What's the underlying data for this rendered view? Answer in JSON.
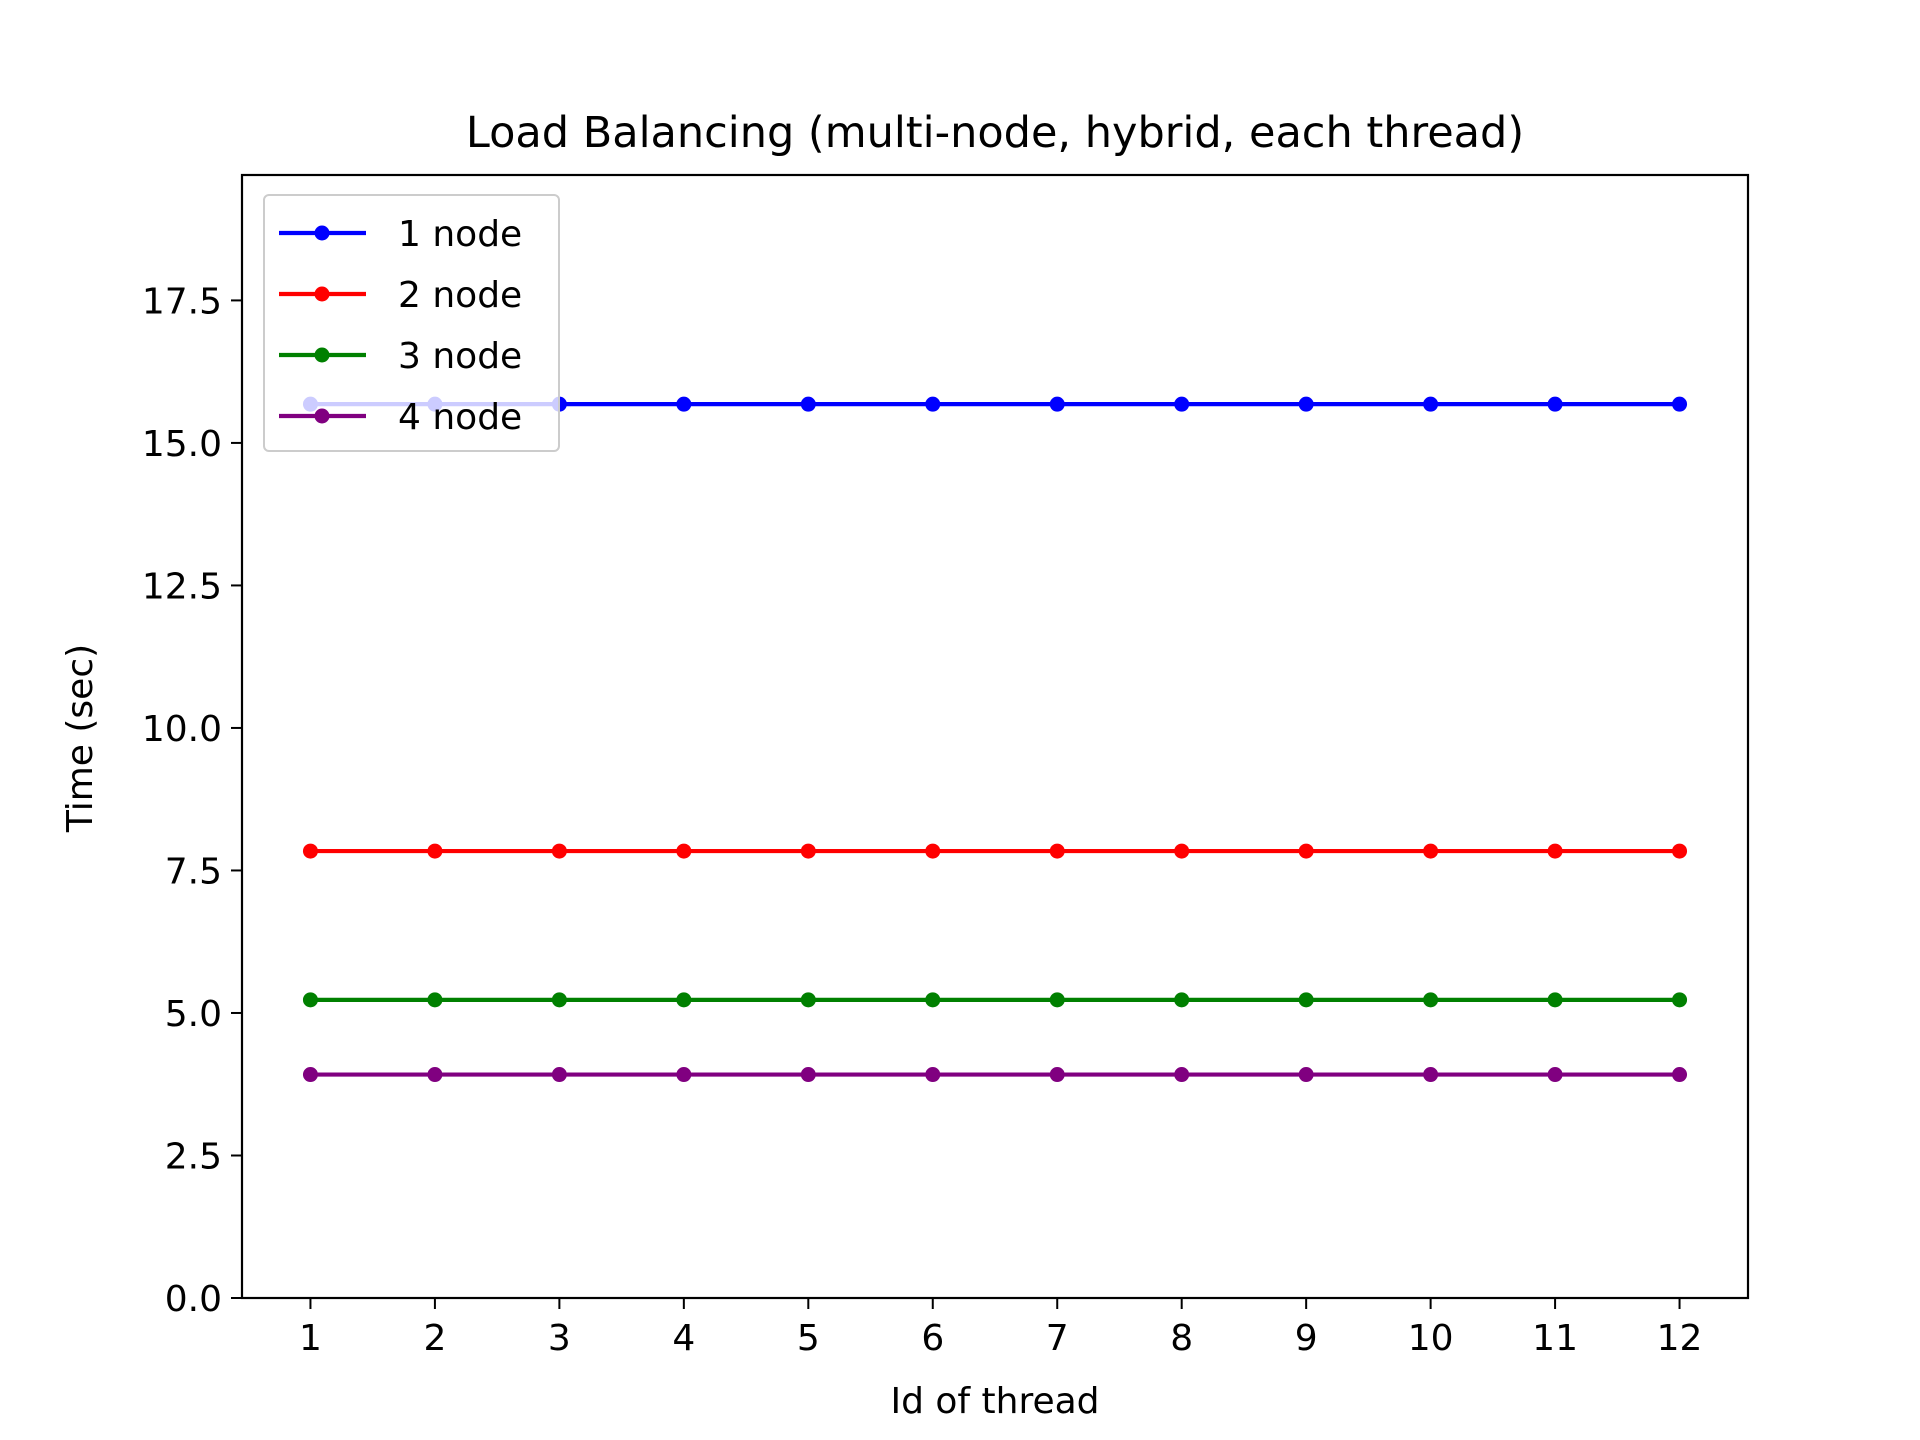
{
  "chart_data": {
    "type": "line",
    "title": "Load Balancing (multi-node, hybrid, each thread)",
    "xlabel": "Id of thread",
    "ylabel": "Time (sec)",
    "x": [
      1,
      2,
      3,
      4,
      5,
      6,
      7,
      8,
      9,
      10,
      11,
      12
    ],
    "xticks": [
      "1",
      "2",
      "3",
      "4",
      "5",
      "6",
      "7",
      "8",
      "9",
      "10",
      "11",
      "12"
    ],
    "yticks": [
      "0.0",
      "2.5",
      "5.0",
      "7.5",
      "10.0",
      "12.5",
      "15.0",
      "17.5"
    ],
    "xlim": [
      0.45,
      12.55
    ],
    "ylim": [
      0,
      19.7
    ],
    "grid": false,
    "legend_position": "upper-left",
    "series": [
      {
        "name": "1 node",
        "color": "#0000ff",
        "values": [
          15.68,
          15.68,
          15.68,
          15.68,
          15.68,
          15.68,
          15.68,
          15.68,
          15.68,
          15.68,
          15.68,
          15.68
        ]
      },
      {
        "name": "2 node",
        "color": "#ff0000",
        "values": [
          7.84,
          7.84,
          7.84,
          7.84,
          7.84,
          7.84,
          7.84,
          7.84,
          7.84,
          7.84,
          7.84,
          7.84
        ]
      },
      {
        "name": "3 node",
        "color": "#008000",
        "values": [
          5.23,
          5.23,
          5.23,
          5.23,
          5.23,
          5.23,
          5.23,
          5.23,
          5.23,
          5.23,
          5.23,
          5.23
        ]
      },
      {
        "name": "4 node",
        "color": "#800080",
        "values": [
          3.92,
          3.92,
          3.92,
          3.92,
          3.92,
          3.92,
          3.92,
          3.92,
          3.92,
          3.92,
          3.92,
          3.92
        ]
      }
    ]
  }
}
